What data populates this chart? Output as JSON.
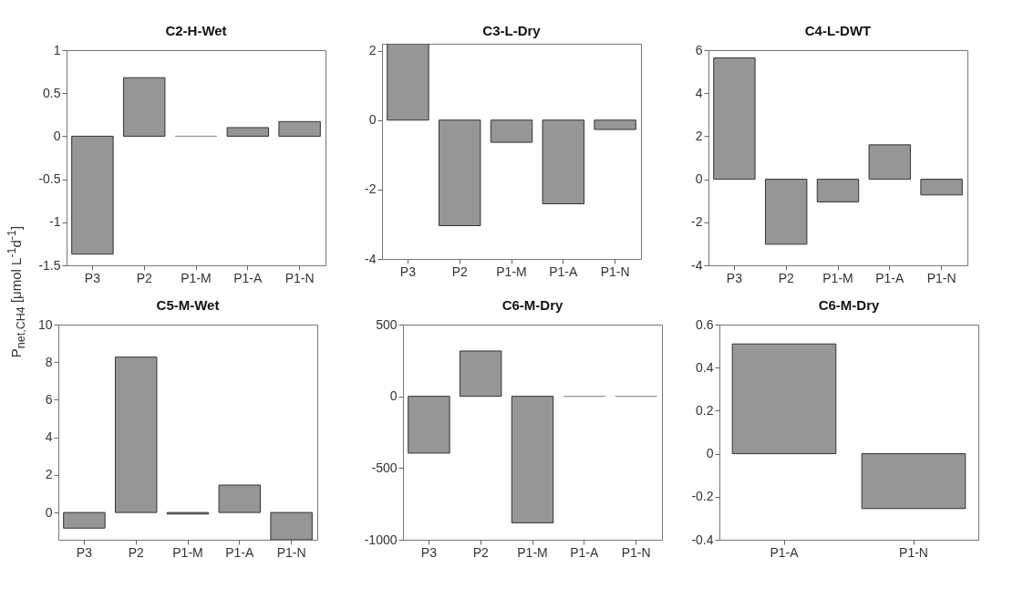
{
  "chart_data": [
    {
      "type": "bar",
      "title": "C2-H-Wet",
      "ylabel": "P$_{net,CH4}$ [μmol L$^{-1}$d$^{-1}$]",
      "categories": [
        "P3",
        "P2",
        "P1-M",
        "P1-A",
        "P1-N"
      ],
      "values": [
        -1.37,
        0.68,
        0,
        0.1,
        0.17
      ],
      "color": "#969696",
      "ylim": [
        -1.5,
        1
      ],
      "yticks": [
        -1.5,
        -1,
        -0.5,
        0,
        0.5,
        1
      ]
    },
    {
      "type": "bar",
      "title": "C3-L-Dry",
      "categories": [
        "P3",
        "P2",
        "P1-M",
        "P1-A",
        "P1-N"
      ],
      "values": [
        2.2,
        -3.04,
        -0.64,
        -2.41,
        -0.27
      ],
      "color": "#969696",
      "ylim": [
        -4,
        2.2
      ],
      "yticks": [
        -4,
        -2,
        0,
        2
      ]
    },
    {
      "type": "bar",
      "title": "C4-L-DWT",
      "categories": [
        "P3",
        "P2",
        "P1-M",
        "P1-A",
        "P1-N"
      ],
      "values": [
        5.64,
        -3.02,
        -1.05,
        1.6,
        -0.73
      ],
      "color": "#969696",
      "ylim": [
        -4,
        6
      ],
      "yticks": [
        -4,
        -2,
        0,
        2,
        4,
        6
      ]
    },
    {
      "type": "bar",
      "title": "C5-M-Wet",
      "categories": [
        "P3",
        "P2",
        "P1-M",
        "P1-A",
        "P1-N"
      ],
      "values": [
        -0.83,
        8.27,
        -0.08,
        1.46,
        -1.45
      ],
      "color": "#969696",
      "ylim": [
        -1.45,
        10
      ],
      "yticks": [
        0,
        2,
        4,
        6,
        8,
        10
      ]
    },
    {
      "type": "bar",
      "title": "C6-M-Dry",
      "categories": [
        "P3",
        "P2",
        "P1-M",
        "P1-A",
        "P1-N"
      ],
      "values": [
        -396,
        316,
        -882,
        0,
        0
      ],
      "color": "#969696",
      "ylim": [
        -1000,
        500
      ],
      "yticks": [
        -1000,
        -500,
        0,
        500
      ]
    },
    {
      "type": "bar",
      "title": "C6-M-Dry",
      "categories": [
        "P1-A",
        "P1-N"
      ],
      "values": [
        0.51,
        -0.255
      ],
      "color": "#969696",
      "ylim": [
        -0.4,
        0.6
      ],
      "yticks": [
        -0.4,
        -0.2,
        0,
        0.2,
        0.4,
        0.6
      ]
    }
  ]
}
